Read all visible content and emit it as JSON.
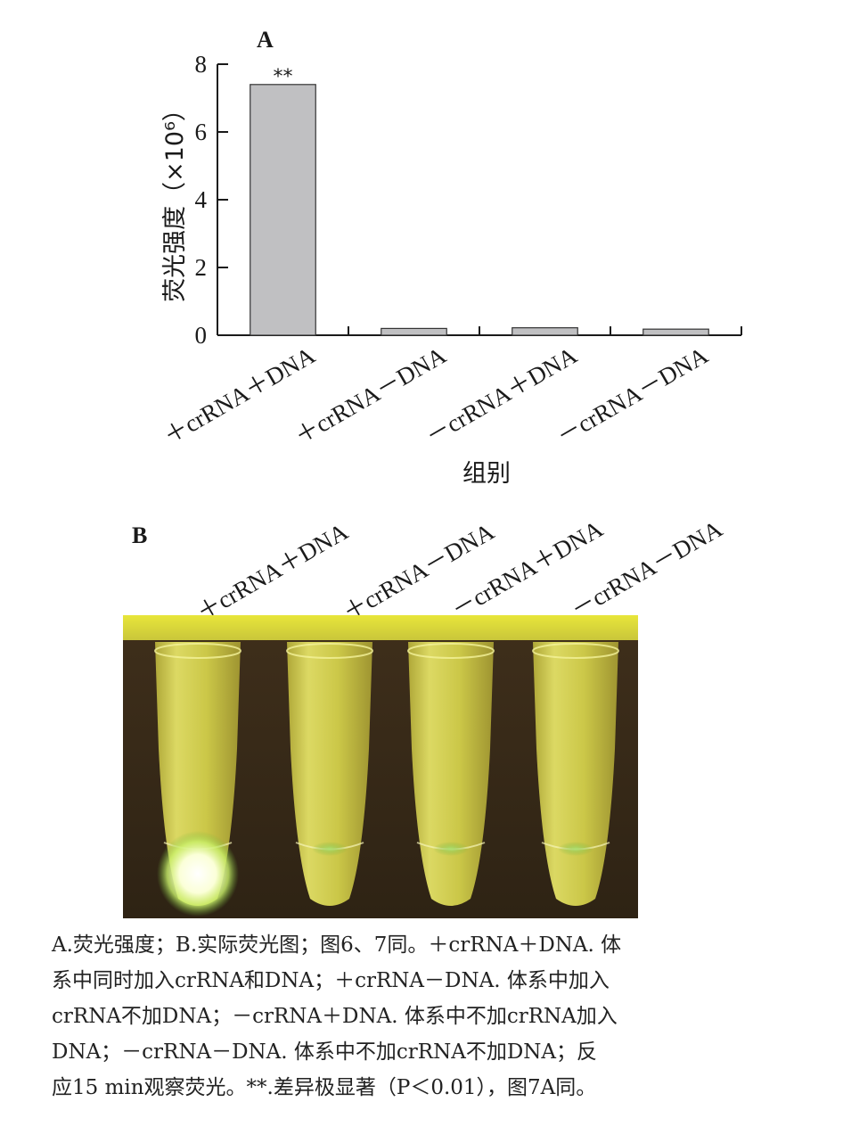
{
  "panels": {
    "a_label": "A",
    "b_label": "B"
  },
  "chart_data": {
    "type": "bar",
    "categories": [
      "＋crRNA＋DNA",
      "＋crRNA－DNA",
      "－crRNA＋DNA",
      "－crRNA－DNA"
    ],
    "values": [
      7.4,
      0.2,
      0.22,
      0.18
    ],
    "ylabel": "荧光强度（×10⁶）",
    "xlabel": "组别",
    "ylim": [
      0,
      8
    ],
    "yticks": [
      0,
      2,
      4,
      6,
      8
    ],
    "annotations": [
      {
        "category": "＋crRNA＋DNA",
        "text": "**"
      }
    ],
    "bar_color": "#c0c0c2",
    "grid": false
  },
  "photo": {
    "tube_labels": [
      "＋crRNA＋DNA",
      "＋crRNA－DNA",
      "－crRNA＋DNA",
      "－crRNA－DNA"
    ],
    "background_color": "#3b2a19",
    "tube_color": "#e2e04a",
    "glow_color": "#ffffff"
  },
  "caption": {
    "lines": [
      "A.荧光强度；B.实际荧光图；图6、7同。＋crRNA＋DNA. 体",
      "系中同时加入crRNA和DNA；＋crRNA－DNA. 体系中加入",
      "crRNA不加DNA；－crRNA＋DNA. 体系中不加crRNA加入",
      "DNA；－crRNA－DNA. 体系中不加crRNA不加DNA；反",
      "应15 min观察荧光。**.差异极显著（P＜0.01），图7A同。"
    ]
  }
}
